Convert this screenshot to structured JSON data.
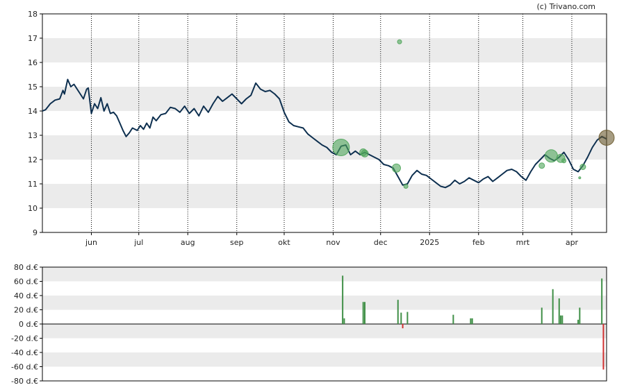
{
  "credit": "(c) Trivano.com",
  "chart_data": [
    {
      "type": "line",
      "title": "",
      "xlabel": "",
      "ylabel": "",
      "ylim": [
        9,
        18
      ],
      "y_ticks": [
        9,
        10,
        11,
        12,
        13,
        14,
        15,
        16,
        17,
        18
      ],
      "x_range": [
        "2024-05-01",
        "2025-04-23"
      ],
      "x_ticks": [
        {
          "date": "2024-06-01",
          "label": "jun"
        },
        {
          "date": "2024-07-01",
          "label": "jul"
        },
        {
          "date": "2024-08-01",
          "label": "aug"
        },
        {
          "date": "2024-09-01",
          "label": "sep"
        },
        {
          "date": "2024-10-01",
          "label": "okt"
        },
        {
          "date": "2024-11-01",
          "label": "nov"
        },
        {
          "date": "2024-12-01",
          "label": "dec"
        },
        {
          "date": "2025-01-01",
          "label": "2025"
        },
        {
          "date": "2025-02-01",
          "label": "feb"
        },
        {
          "date": "2025-03-01",
          "label": "mrt"
        },
        {
          "date": "2025-04-01",
          "label": "apr"
        }
      ],
      "grid": "vertical dotted at month starts, alternating horizontal bands",
      "line_color": "#0d2f4f",
      "series": [
        {
          "points": [
            [
              "2024-05-01",
              14.0
            ],
            [
              "2024-05-03",
              14.05
            ],
            [
              "2024-05-06",
              14.3
            ],
            [
              "2024-05-09",
              14.45
            ],
            [
              "2024-05-12",
              14.5
            ],
            [
              "2024-05-14",
              14.85
            ],
            [
              "2024-05-15",
              14.7
            ],
            [
              "2024-05-17",
              15.3
            ],
            [
              "2024-05-19",
              15.0
            ],
            [
              "2024-05-21",
              15.1
            ],
            [
              "2024-05-24",
              14.8
            ],
            [
              "2024-05-27",
              14.5
            ],
            [
              "2024-05-29",
              14.9
            ],
            [
              "2024-05-30",
              14.95
            ],
            [
              "2024-06-01",
              13.9
            ],
            [
              "2024-06-03",
              14.3
            ],
            [
              "2024-06-05",
              14.1
            ],
            [
              "2024-06-07",
              14.55
            ],
            [
              "2024-06-09",
              14.0
            ],
            [
              "2024-06-11",
              14.3
            ],
            [
              "2024-06-13",
              13.9
            ],
            [
              "2024-06-15",
              13.95
            ],
            [
              "2024-06-17",
              13.8
            ],
            [
              "2024-06-19",
              13.5
            ],
            [
              "2024-06-21",
              13.2
            ],
            [
              "2024-06-23",
              12.95
            ],
            [
              "2024-06-25",
              13.1
            ],
            [
              "2024-06-27",
              13.3
            ],
            [
              "2024-06-30",
              13.2
            ],
            [
              "2024-07-02",
              13.4
            ],
            [
              "2024-07-04",
              13.25
            ],
            [
              "2024-07-06",
              13.5
            ],
            [
              "2024-07-08",
              13.3
            ],
            [
              "2024-07-10",
              13.75
            ],
            [
              "2024-07-12",
              13.6
            ],
            [
              "2024-07-15",
              13.85
            ],
            [
              "2024-07-18",
              13.9
            ],
            [
              "2024-07-21",
              14.15
            ],
            [
              "2024-07-24",
              14.1
            ],
            [
              "2024-07-27",
              13.95
            ],
            [
              "2024-07-30",
              14.2
            ],
            [
              "2024-08-02",
              13.9
            ],
            [
              "2024-08-05",
              14.1
            ],
            [
              "2024-08-08",
              13.8
            ],
            [
              "2024-08-11",
              14.2
            ],
            [
              "2024-08-14",
              13.95
            ],
            [
              "2024-08-17",
              14.3
            ],
            [
              "2024-08-20",
              14.6
            ],
            [
              "2024-08-23",
              14.4
            ],
            [
              "2024-08-26",
              14.55
            ],
            [
              "2024-08-29",
              14.7
            ],
            [
              "2024-09-01",
              14.5
            ],
            [
              "2024-09-04",
              14.3
            ],
            [
              "2024-09-07",
              14.5
            ],
            [
              "2024-09-10",
              14.65
            ],
            [
              "2024-09-13",
              15.15
            ],
            [
              "2024-09-16",
              14.9
            ],
            [
              "2024-09-19",
              14.8
            ],
            [
              "2024-09-22",
              14.85
            ],
            [
              "2024-09-25",
              14.7
            ],
            [
              "2024-09-28",
              14.5
            ],
            [
              "2024-10-01",
              13.95
            ],
            [
              "2024-10-04",
              13.55
            ],
            [
              "2024-10-07",
              13.4
            ],
            [
              "2024-10-10",
              13.35
            ],
            [
              "2024-10-13",
              13.3
            ],
            [
              "2024-10-16",
              13.05
            ],
            [
              "2024-10-19",
              12.9
            ],
            [
              "2024-10-22",
              12.75
            ],
            [
              "2024-10-25",
              12.6
            ],
            [
              "2024-10-28",
              12.5
            ],
            [
              "2024-10-31",
              12.3
            ],
            [
              "2024-11-03",
              12.2
            ],
            [
              "2024-11-06",
              12.55
            ],
            [
              "2024-11-09",
              12.6
            ],
            [
              "2024-11-12",
              12.2
            ],
            [
              "2024-11-15",
              12.35
            ],
            [
              "2024-11-18",
              12.2
            ],
            [
              "2024-11-21",
              12.3
            ],
            [
              "2024-11-24",
              12.2
            ],
            [
              "2024-11-27",
              12.1
            ],
            [
              "2024-11-30",
              12.0
            ],
            [
              "2024-12-03",
              11.8
            ],
            [
              "2024-12-06",
              11.75
            ],
            [
              "2024-12-09",
              11.65
            ],
            [
              "2024-12-12",
              11.3
            ],
            [
              "2024-12-15",
              10.95
            ],
            [
              "2024-12-18",
              11.0
            ],
            [
              "2024-12-21",
              11.35
            ],
            [
              "2024-12-24",
              11.55
            ],
            [
              "2024-12-27",
              11.4
            ],
            [
              "2024-12-30",
              11.35
            ],
            [
              "2025-01-02",
              11.2
            ],
            [
              "2025-01-05",
              11.05
            ],
            [
              "2025-01-08",
              10.9
            ],
            [
              "2025-01-11",
              10.85
            ],
            [
              "2025-01-14",
              10.95
            ],
            [
              "2025-01-17",
              11.15
            ],
            [
              "2025-01-20",
              11.0
            ],
            [
              "2025-01-23",
              11.1
            ],
            [
              "2025-01-26",
              11.25
            ],
            [
              "2025-01-29",
              11.15
            ],
            [
              "2025-02-01",
              11.05
            ],
            [
              "2025-02-04",
              11.2
            ],
            [
              "2025-02-07",
              11.3
            ],
            [
              "2025-02-10",
              11.1
            ],
            [
              "2025-02-13",
              11.25
            ],
            [
              "2025-02-16",
              11.4
            ],
            [
              "2025-02-19",
              11.55
            ],
            [
              "2025-02-22",
              11.6
            ],
            [
              "2025-02-25",
              11.5
            ],
            [
              "2025-02-28",
              11.3
            ],
            [
              "2025-03-03",
              11.15
            ],
            [
              "2025-03-06",
              11.5
            ],
            [
              "2025-03-09",
              11.8
            ],
            [
              "2025-03-12",
              12.0
            ],
            [
              "2025-03-15",
              12.2
            ],
            [
              "2025-03-18",
              12.05
            ],
            [
              "2025-03-21",
              11.95
            ],
            [
              "2025-03-24",
              12.1
            ],
            [
              "2025-03-27",
              12.3
            ],
            [
              "2025-03-30",
              12.0
            ],
            [
              "2025-04-02",
              11.6
            ],
            [
              "2025-04-05",
              11.5
            ],
            [
              "2025-04-08",
              11.75
            ],
            [
              "2025-04-11",
              12.1
            ],
            [
              "2025-04-14",
              12.5
            ],
            [
              "2025-04-17",
              12.8
            ],
            [
              "2025-04-20",
              12.95
            ],
            [
              "2025-04-23",
              12.85
            ]
          ]
        }
      ],
      "bubbles": [
        {
          "date": "2024-11-06",
          "value": 12.5,
          "size": 12,
          "color": "#4fa55a"
        },
        {
          "date": "2024-11-20",
          "value": 12.3,
          "size": 5,
          "color": "#4fa55a"
        },
        {
          "date": "2024-11-21",
          "value": 12.25,
          "size": 5,
          "color": "#4fa55a"
        },
        {
          "date": "2024-12-11",
          "value": 11.65,
          "size": 6,
          "color": "#4fa55a"
        },
        {
          "date": "2024-12-13",
          "value": 16.85,
          "size": 3,
          "color": "#4fa55a"
        },
        {
          "date": "2024-12-17",
          "value": 10.9,
          "size": 3,
          "color": "#4fa55a"
        },
        {
          "date": "2025-03-13",
          "value": 11.75,
          "size": 4,
          "color": "#4fa55a"
        },
        {
          "date": "2025-03-19",
          "value": 12.15,
          "size": 9,
          "color": "#4fa55a"
        },
        {
          "date": "2025-03-25",
          "value": 12.05,
          "size": 6,
          "color": "#4fa55a"
        },
        {
          "date": "2025-03-27",
          "value": 11.95,
          "size": 3,
          "color": "#4fa55a"
        },
        {
          "date": "2025-04-06",
          "value": 11.25,
          "size": 1.5,
          "color": "#4fa55a"
        },
        {
          "date": "2025-04-08",
          "value": 11.7,
          "size": 4,
          "color": "#4fa55a"
        },
        {
          "date": "2025-04-23",
          "value": 12.9,
          "size": 11,
          "color": "#6b5a2e"
        }
      ]
    },
    {
      "type": "bar",
      "title": "",
      "ylim": [
        -80,
        80
      ],
      "y_ticks": [
        {
          "value": 80,
          "label": "80 d.€"
        },
        {
          "value": 60,
          "label": "60 d.€"
        },
        {
          "value": 40,
          "label": "40 d.€"
        },
        {
          "value": 20,
          "label": "20 d.€"
        },
        {
          "value": 0,
          "label": "0 d.€"
        },
        {
          "value": -20,
          "label": "-20 d.€"
        },
        {
          "value": -40,
          "label": "-40 d.€"
        },
        {
          "value": -60,
          "label": "-60 d.€"
        },
        {
          "value": -80,
          "label": "-80 d.€"
        }
      ],
      "positive_color": "#3f8f46",
      "negative_color": "#d03030",
      "bars": [
        {
          "date": "2024-11-07",
          "value": 68
        },
        {
          "date": "2024-11-08",
          "value": 8
        },
        {
          "date": "2024-11-20",
          "value": 31
        },
        {
          "date": "2024-11-21",
          "value": 31
        },
        {
          "date": "2024-12-12",
          "value": 34
        },
        {
          "date": "2024-12-14",
          "value": 16
        },
        {
          "date": "2024-12-15",
          "value": -6
        },
        {
          "date": "2024-12-18",
          "value": 17
        },
        {
          "date": "2025-01-16",
          "value": 13
        },
        {
          "date": "2025-01-27",
          "value": 8
        },
        {
          "date": "2025-01-28",
          "value": 8
        },
        {
          "date": "2025-03-13",
          "value": 23
        },
        {
          "date": "2025-03-20",
          "value": 49
        },
        {
          "date": "2025-03-24",
          "value": 36
        },
        {
          "date": "2025-03-25",
          "value": 12
        },
        {
          "date": "2025-03-26",
          "value": 12
        },
        {
          "date": "2025-04-05",
          "value": 6
        },
        {
          "date": "2025-04-06",
          "value": 23
        },
        {
          "date": "2025-04-20",
          "value": 64
        },
        {
          "date": "2025-04-21",
          "value": -64
        }
      ]
    }
  ]
}
